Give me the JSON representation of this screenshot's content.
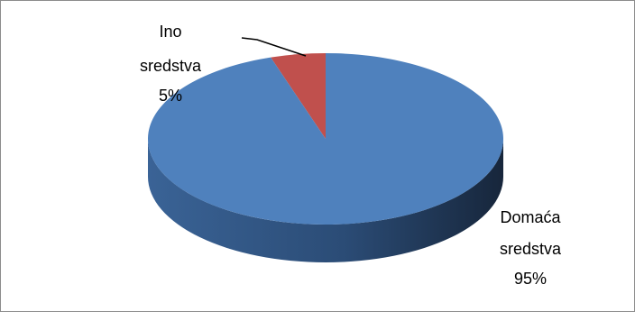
{
  "chart_data": {
    "type": "pie",
    "style": "3d",
    "title": "",
    "slices": [
      {
        "label_lines": [
          "Ino",
          "sredstva"
        ],
        "name": "Ino sredstva",
        "value": 5,
        "value_label": "5%",
        "color": "#C0504D"
      },
      {
        "label_lines": [
          "Domaća",
          "sredstva"
        ],
        "name": "Domaća sredstva",
        "value": 95,
        "value_label": "95%",
        "color": "#4F81BD"
      }
    ],
    "legend": "none"
  }
}
